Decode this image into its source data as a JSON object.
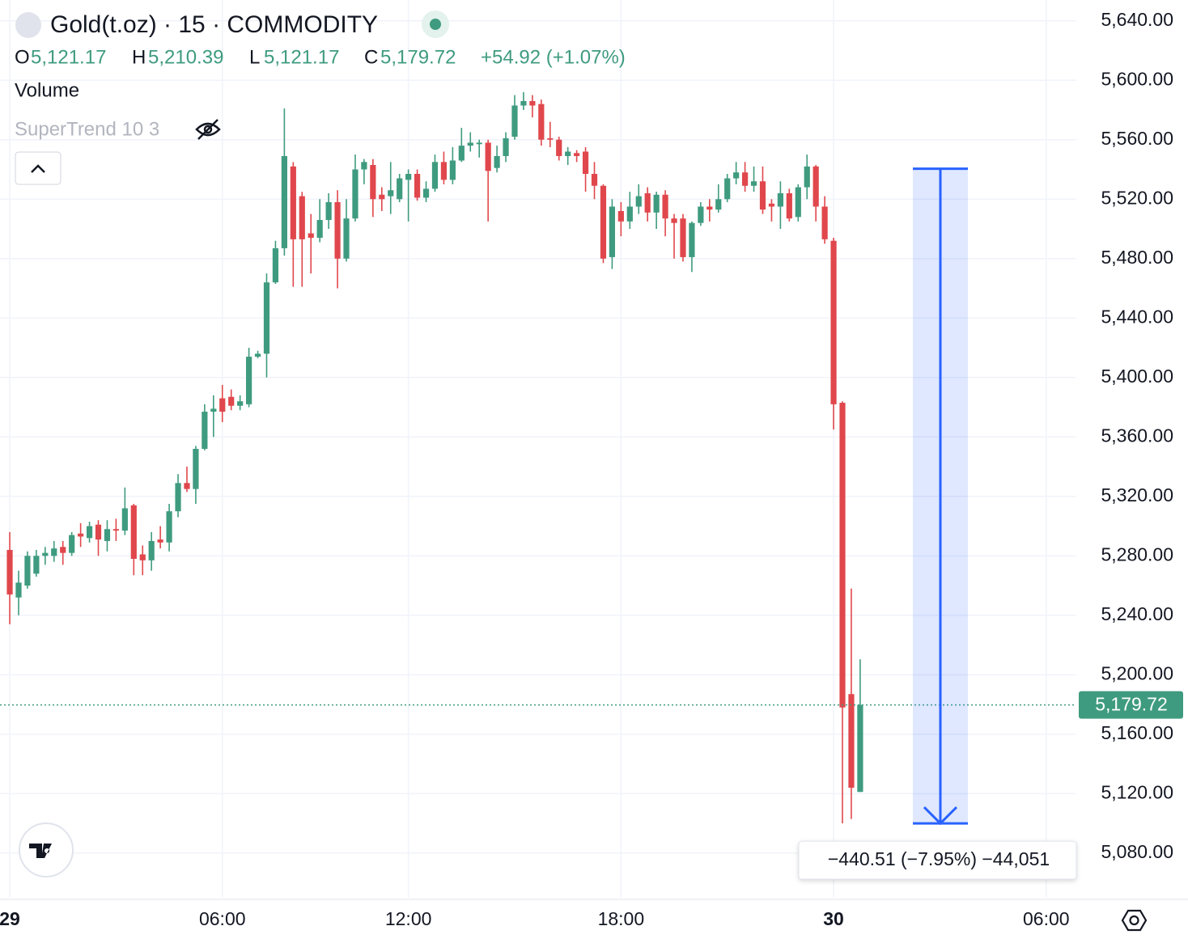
{
  "chart_data": {
    "type": "candlestick",
    "title": "Gold(t.oz) · 15 · COMMODITY",
    "legend": {
      "open_key": "O",
      "open": "5,121.17",
      "high_key": "H",
      "high": "5,210.39",
      "low_key": "L",
      "low": "5,121.17",
      "close_key": "C",
      "close": "5,179.72",
      "change": "+54.92 (+1.07%)"
    },
    "indicators": [
      "Volume",
      "SuperTrend 10 3"
    ],
    "up_color": "#3f9b7f",
    "down_color": "#e0474c",
    "open": [
      5284,
      5252,
      5260,
      5268,
      5280,
      5280,
      5286,
      5282,
      5295,
      5292,
      5301,
      5290,
      5298,
      5297,
      5314,
      5281,
      5277,
      5291,
      5289,
      5310,
      5329,
      5325,
      5352,
      5377,
      5386,
      5387,
      5381,
      5382,
      5414,
      5416,
      5464,
      5487,
      5542,
      5522,
      5497,
      5494,
      5506,
      5518,
      5480,
      5507,
      5540,
      5543,
      5523,
      5522,
      5520,
      5533,
      5537,
      5521,
      5527,
      5545,
      5533,
      5546,
      5556,
      5557,
      5558,
      5541,
      5549,
      5562,
      5583,
      5586,
      5584,
      5561,
      5560,
      5549,
      5551,
      5552,
      5537,
      5529,
      5481,
      5512,
      5505,
      5515,
      5524,
      5511,
      5523,
      5507,
      5507,
      5481,
      5504,
      5515,
      5513,
      5520,
      5534,
      5538,
      5529,
      5532,
      5517,
      5515,
      5524,
      5508,
      5528,
      5542,
      5515,
      5492,
      5383,
      5187,
      5121.17
    ],
    "high": [
      5296,
      5270,
      5283,
      5284,
      5286,
      5290,
      5290,
      5296,
      5302,
      5303,
      5304,
      5304,
      5305,
      5326,
      5315,
      5287,
      5296,
      5300,
      5315,
      5335,
      5340,
      5354,
      5382,
      5388,
      5395,
      5392,
      5388,
      5420,
      5418,
      5470,
      5492,
      5581,
      5545,
      5525,
      5510,
      5520,
      5524,
      5526,
      5520,
      5550,
      5547,
      5547,
      5528,
      5545,
      5537,
      5540,
      5540,
      5532,
      5550,
      5552,
      5555,
      5568,
      5565,
      5560,
      5560,
      5556,
      5565,
      5590,
      5592,
      5590,
      5587,
      5572,
      5562,
      5555,
      5553,
      5555,
      5545,
      5530,
      5520,
      5518,
      5525,
      5530,
      5528,
      5525,
      5526,
      5510,
      5510,
      5505,
      5518,
      5520,
      5530,
      5537,
      5545,
      5545,
      5542,
      5542,
      5520,
      5532,
      5527,
      5530,
      5550,
      5543,
      5522,
      5494,
      5384,
      5258,
      5210.39
    ],
    "low": [
      5234,
      5240,
      5258,
      5266,
      5274,
      5276,
      5274,
      5280,
      5286,
      5289,
      5280,
      5283,
      5290,
      5294,
      5267,
      5267,
      5270,
      5285,
      5283,
      5306,
      5323,
      5315,
      5351,
      5360,
      5370,
      5378,
      5378,
      5380,
      5413,
      5400,
      5463,
      5482,
      5461,
      5461,
      5470,
      5491,
      5500,
      5460,
      5478,
      5505,
      5530,
      5508,
      5512,
      5510,
      5518,
      5505,
      5519,
      5518,
      5525,
      5530,
      5530,
      5545,
      5552,
      5548,
      5505,
      5538,
      5545,
      5560,
      5580,
      5575,
      5556,
      5555,
      5546,
      5543,
      5545,
      5525,
      5520,
      5477,
      5473,
      5495,
      5500,
      5510,
      5505,
      5500,
      5495,
      5480,
      5478,
      5471,
      5502,
      5505,
      5511,
      5518,
      5530,
      5525,
      5525,
      5510,
      5505,
      5500,
      5505,
      5505,
      5520,
      5505,
      5490,
      5365,
      5100,
      5103,
      5121.17
    ],
    "close": [
      5254,
      5262,
      5280,
      5280,
      5282,
      5285,
      5282,
      5294,
      5293,
      5300,
      5291,
      5298,
      5297,
      5312,
      5278,
      5277,
      5290,
      5289,
      5310,
      5329,
      5325,
      5352,
      5377,
      5379,
      5377,
      5381,
      5384,
      5414,
      5416,
      5464,
      5487,
      5549,
      5493,
      5493,
      5494,
      5506,
      5518,
      5480,
      5507,
      5540,
      5545,
      5520,
      5520,
      5526,
      5534,
      5537,
      5521,
      5527,
      5545,
      5533,
      5546,
      5556,
      5558,
      5558,
      5539,
      5549,
      5561,
      5583,
      5586,
      5583,
      5560,
      5560,
      5549,
      5552,
      5549,
      5537,
      5529,
      5480,
      5515,
      5505,
      5515,
      5522,
      5511,
      5523,
      5507,
      5504,
      5481,
      5504,
      5515,
      5513,
      5520,
      5534,
      5538,
      5529,
      5532,
      5513,
      5515,
      5524,
      5507,
      5528,
      5542,
      5515,
      5493,
      5382,
      5178,
      5124,
      5179.72
    ],
    "xlim": [
      -1.1,
      120.4
    ],
    "xticks": [
      {
        "value": 0,
        "label": "29"
      },
      {
        "value": 24,
        "label": "06:00"
      },
      {
        "value": 45,
        "label": "12:00"
      },
      {
        "value": 69,
        "label": "18:00"
      },
      {
        "value": 93,
        "label": "30"
      },
      {
        "value": 117,
        "label": "06:00"
      }
    ],
    "ylim": [
      5050,
      5654
    ],
    "yticks": [
      {
        "value": 5640,
        "label": "5,640.00"
      },
      {
        "value": 5600,
        "label": "5,600.00"
      },
      {
        "value": 5560,
        "label": "5,560.00"
      },
      {
        "value": 5520,
        "label": "5,520.00"
      },
      {
        "value": 5480,
        "label": "5,480.00"
      },
      {
        "value": 5440,
        "label": "5,440.00"
      },
      {
        "value": 5400,
        "label": "5,400.00"
      },
      {
        "value": 5360,
        "label": "5,360.00"
      },
      {
        "value": 5320,
        "label": "5,320.00"
      },
      {
        "value": 5280,
        "label": "5,280.00"
      },
      {
        "value": 5240,
        "label": "5,240.00"
      },
      {
        "value": 5200,
        "label": "5,200.00"
      },
      {
        "value": 5160,
        "label": "5,160.00"
      },
      {
        "value": 5120,
        "label": "5,120.00"
      },
      {
        "value": 5080,
        "label": "5,080.00"
      }
    ],
    "grid": true,
    "measure": {
      "from": 5540.51,
      "to": 5100,
      "label": "−440.51 (−7.95%) −44,051",
      "color": "#2962ff"
    }
  }
}
